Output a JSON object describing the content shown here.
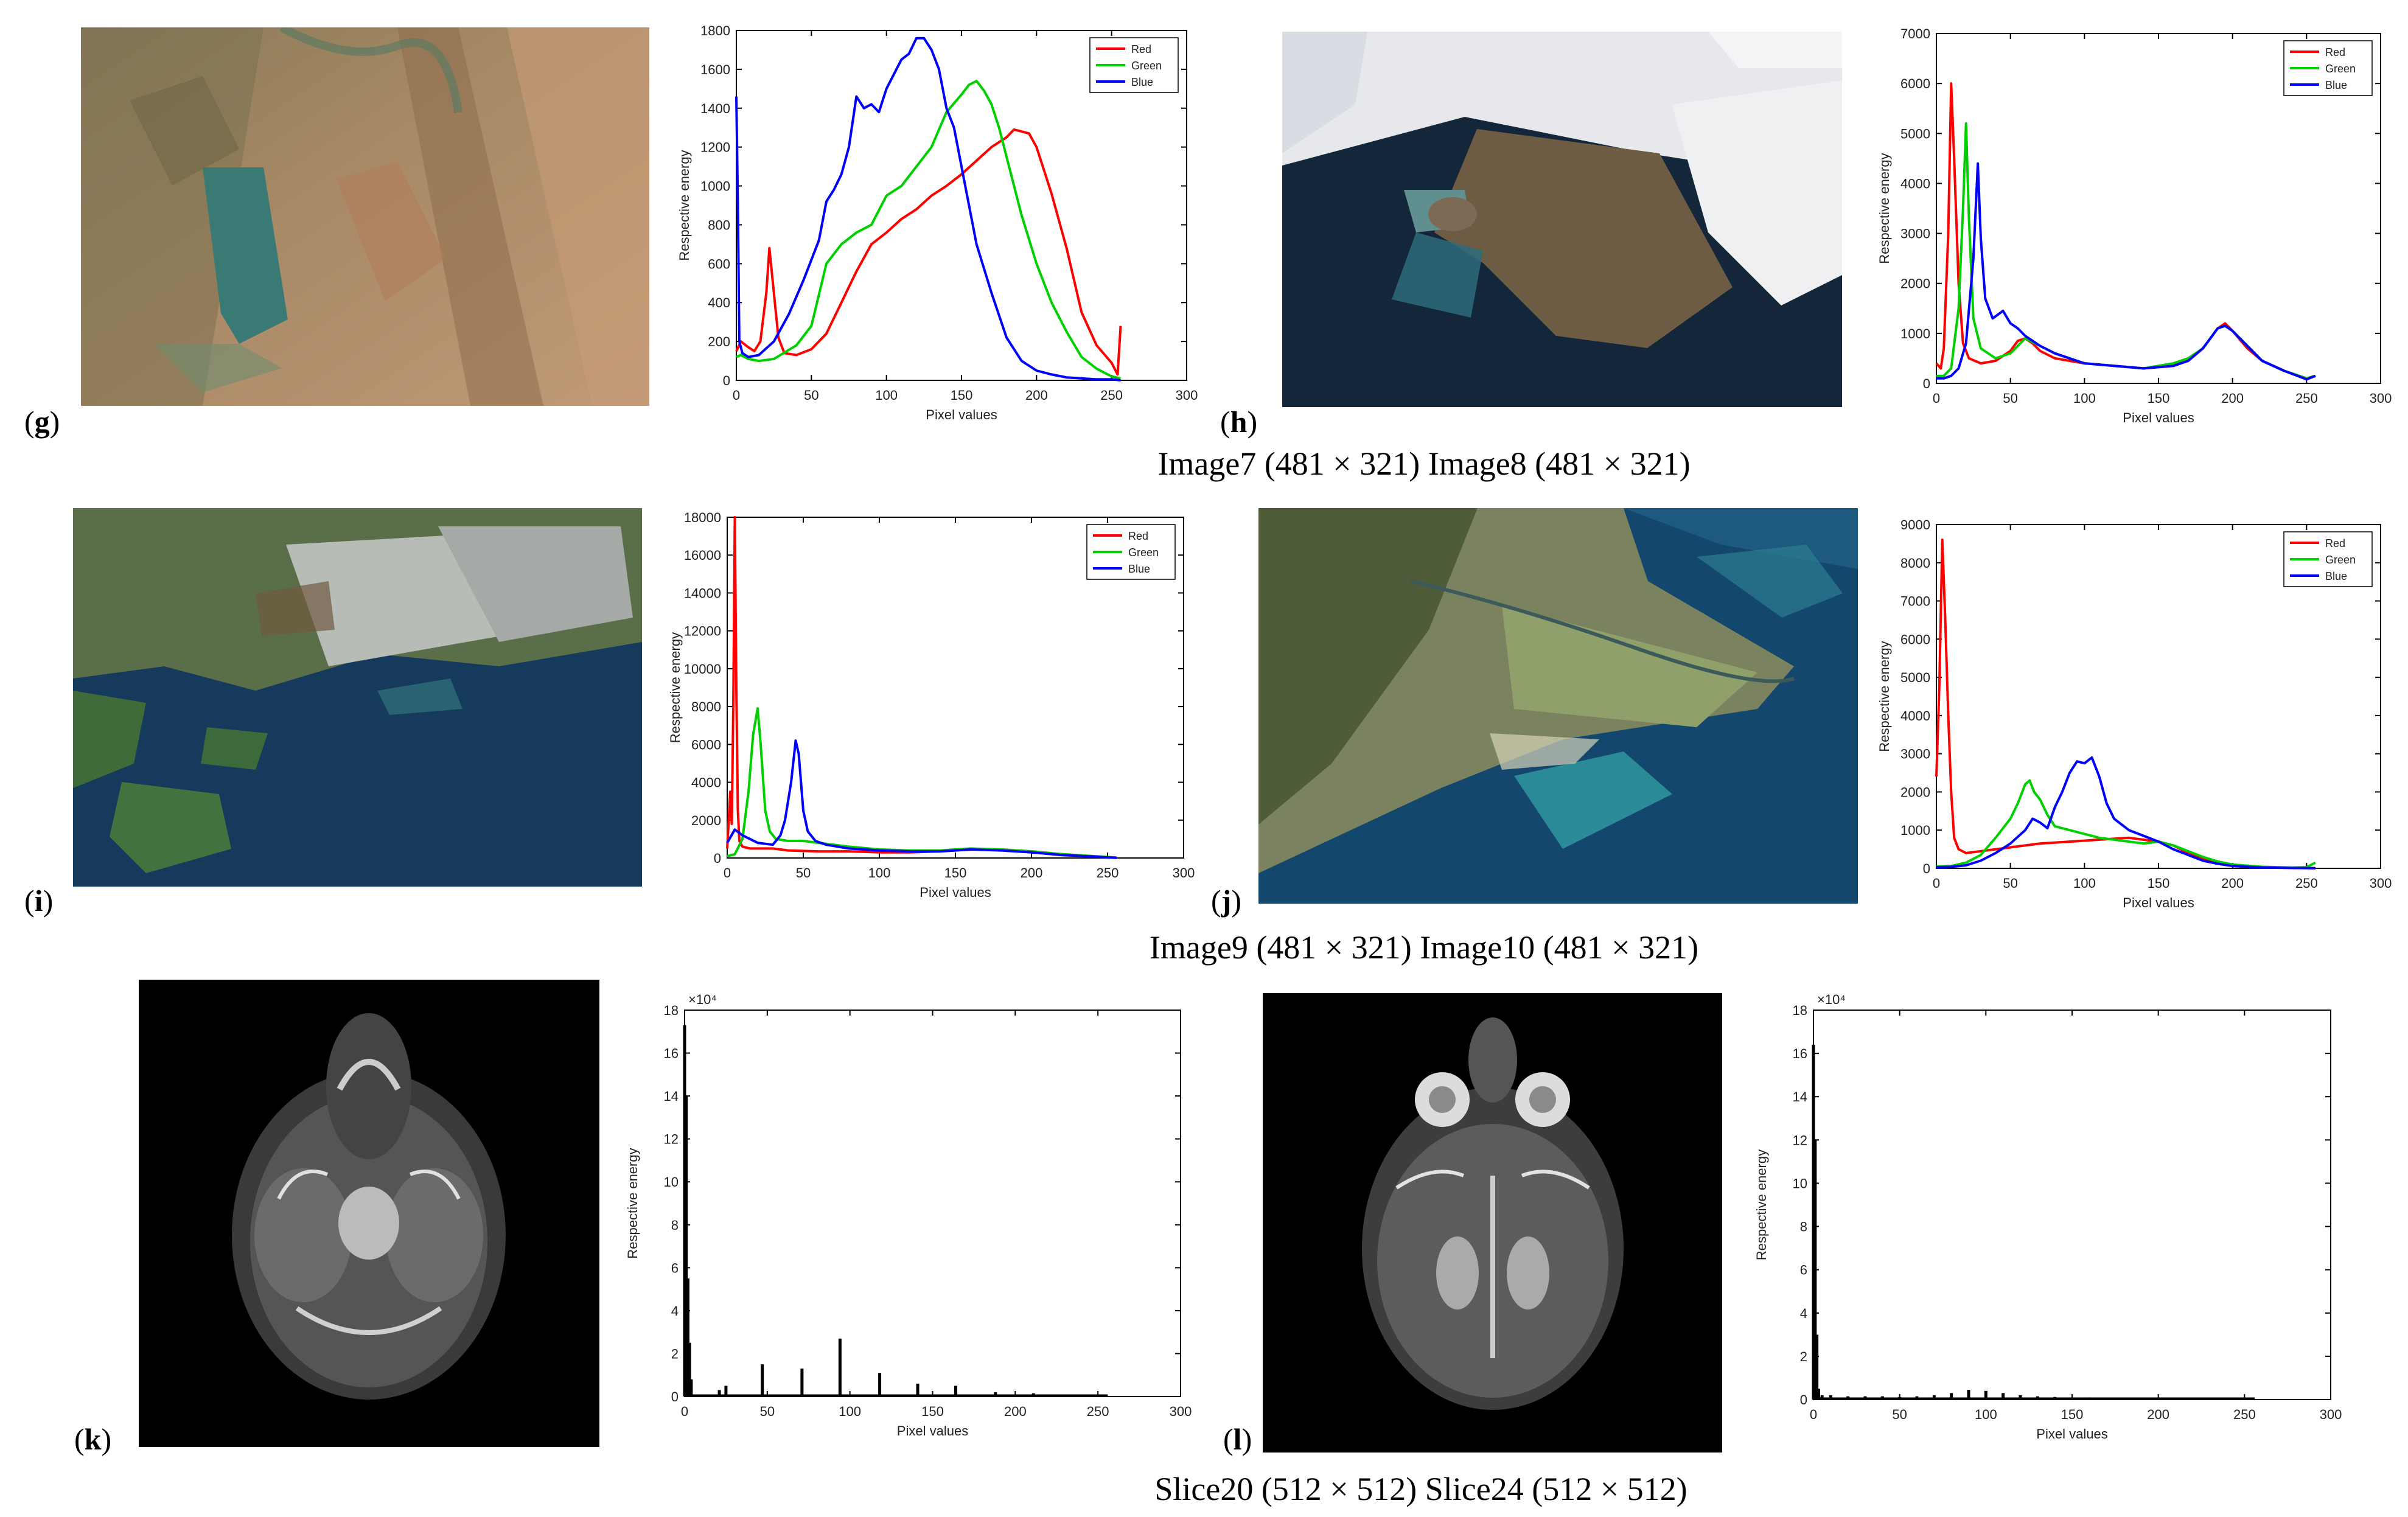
{
  "figure": {
    "captions": {
      "row1": "Image7 (481 × 321) Image8 (481 × 321)",
      "row2": "Image9 (481 × 321) Image10 (481 × 321)",
      "row3": "Slice20 (512 × 512) Slice24 (512 × 512)"
    },
    "panels": [
      {
        "letter": "g",
        "image": "satellite image of a triangular lake amid brown mountains"
      },
      {
        "letter": "h",
        "image": "satellite image of a snowy coastline with cloud cover and dark sea"
      },
      {
        "letter": "i",
        "image": "satellite image of a coastal city with green forested islands and blue sea"
      },
      {
        "letter": "j",
        "image": "satellite image of a river delta with green fields and turquoise lagoon"
      },
      {
        "letter": "k",
        "image": "axial brain MRI slice, grayscale on black background"
      },
      {
        "letter": "l",
        "image": "axial brain MRI slice at eye level, grayscale on black background"
      }
    ]
  },
  "chart_data": [
    {
      "id": "g-hist",
      "type": "line",
      "xlabel": "Pixel values",
      "ylabel": "Respective energy",
      "xlim": [
        0,
        300
      ],
      "ylim": [
        0,
        1800
      ],
      "xticks": [
        0,
        50,
        100,
        150,
        200,
        250,
        300
      ],
      "yticks": [
        0,
        200,
        400,
        600,
        800,
        1000,
        1200,
        1400,
        1600,
        1800
      ],
      "exponent": "",
      "legend": "top-right",
      "grid": false,
      "series": [
        {
          "name": "Red",
          "color": "#ff0000",
          "x": [
            0,
            3,
            8,
            12,
            16,
            20,
            22,
            25,
            28,
            32,
            40,
            50,
            60,
            70,
            80,
            90,
            100,
            110,
            120,
            130,
            140,
            150,
            160,
            170,
            180,
            185,
            190,
            195,
            200,
            210,
            220,
            230,
            240,
            250,
            254,
            256
          ],
          "y": [
            150,
            200,
            170,
            150,
            200,
            450,
            680,
            450,
            220,
            140,
            130,
            160,
            240,
            400,
            560,
            700,
            760,
            830,
            880,
            950,
            1000,
            1060,
            1130,
            1200,
            1250,
            1290,
            1280,
            1270,
            1200,
            960,
            680,
            350,
            180,
            90,
            30,
            280
          ]
        },
        {
          "name": "Green",
          "color": "#00d000",
          "x": [
            0,
            3,
            8,
            15,
            25,
            40,
            50,
            60,
            70,
            80,
            90,
            100,
            110,
            120,
            130,
            140,
            150,
            155,
            160,
            165,
            170,
            175,
            180,
            190,
            200,
            210,
            220,
            230,
            240,
            250,
            256
          ],
          "y": [
            120,
            130,
            110,
            100,
            110,
            180,
            280,
            600,
            700,
            760,
            800,
            950,
            1000,
            1100,
            1200,
            1380,
            1470,
            1520,
            1540,
            1490,
            1420,
            1300,
            1150,
            850,
            600,
            400,
            250,
            120,
            60,
            20,
            10
          ]
        },
        {
          "name": "Blue",
          "color": "#0000ff",
          "x": [
            0,
            1,
            2,
            4,
            8,
            15,
            25,
            35,
            45,
            55,
            60,
            65,
            70,
            75,
            80,
            85,
            90,
            95,
            100,
            110,
            115,
            120,
            125,
            130,
            135,
            140,
            145,
            150,
            160,
            170,
            180,
            190,
            200,
            210,
            220,
            230,
            240,
            250,
            256
          ],
          "y": [
            1460,
            900,
            200,
            140,
            120,
            130,
            200,
            340,
            520,
            720,
            920,
            980,
            1060,
            1200,
            1460,
            1400,
            1420,
            1380,
            1500,
            1650,
            1680,
            1760,
            1760,
            1700,
            1600,
            1400,
            1300,
            1100,
            700,
            450,
            220,
            100,
            50,
            30,
            15,
            10,
            5,
            5,
            0
          ]
        }
      ]
    },
    {
      "id": "h-hist",
      "type": "line",
      "xlabel": "Pixel values",
      "ylabel": "Respective energy",
      "xlim": [
        0,
        300
      ],
      "ylim": [
        0,
        7000
      ],
      "xticks": [
        0,
        50,
        100,
        150,
        200,
        250,
        300
      ],
      "yticks": [
        0,
        1000,
        2000,
        3000,
        4000,
        5000,
        6000,
        7000
      ],
      "exponent": "",
      "legend": "top-right",
      "grid": false,
      "series": [
        {
          "name": "Red",
          "color": "#ff0000",
          "x": [
            0,
            3,
            5,
            8,
            10,
            12,
            15,
            18,
            22,
            30,
            40,
            50,
            55,
            60,
            65,
            70,
            80,
            100,
            120,
            140,
            160,
            170,
            180,
            185,
            190,
            195,
            200,
            210,
            220,
            235,
            250,
            256
          ],
          "y": [
            400,
            300,
            700,
            3000,
            6000,
            4500,
            2000,
            800,
            500,
            400,
            450,
            650,
            850,
            900,
            800,
            650,
            500,
            400,
            350,
            300,
            350,
            450,
            700,
            900,
            1100,
            1200,
            1050,
            700,
            450,
            250,
            100,
            150
          ]
        },
        {
          "name": "Green",
          "color": "#00d000",
          "x": [
            0,
            5,
            10,
            15,
            18,
            20,
            22,
            25,
            30,
            40,
            50,
            60,
            70,
            80,
            100,
            120,
            140,
            160,
            170,
            180,
            185,
            190,
            195,
            200,
            210,
            220,
            235,
            250,
            256
          ],
          "y": [
            150,
            150,
            300,
            1500,
            3500,
            5200,
            3300,
            1300,
            700,
            500,
            600,
            900,
            750,
            600,
            400,
            350,
            300,
            400,
            500,
            700,
            900,
            1100,
            1150,
            1050,
            750,
            450,
            250,
            100,
            150
          ]
        },
        {
          "name": "Blue",
          "color": "#0000ff",
          "x": [
            0,
            5,
            10,
            15,
            20,
            25,
            28,
            30,
            33,
            38,
            45,
            50,
            55,
            60,
            65,
            70,
            80,
            100,
            120,
            140,
            160,
            170,
            180,
            185,
            190,
            195,
            200,
            210,
            220,
            235,
            250,
            256
          ],
          "y": [
            100,
            100,
            150,
            300,
            800,
            2500,
            4400,
            2900,
            1700,
            1300,
            1450,
            1200,
            1100,
            950,
            850,
            750,
            600,
            400,
            350,
            300,
            350,
            450,
            700,
            900,
            1100,
            1150,
            1050,
            750,
            450,
            250,
            80,
            150
          ]
        }
      ]
    },
    {
      "id": "i-hist",
      "type": "line",
      "xlabel": "Pixel values",
      "ylabel": "Respective energy",
      "xlim": [
        0,
        300
      ],
      "ylim": [
        0,
        18000
      ],
      "xticks": [
        0,
        50,
        100,
        150,
        200,
        250,
        300
      ],
      "yticks": [
        0,
        2000,
        4000,
        6000,
        8000,
        10000,
        12000,
        14000,
        16000,
        18000
      ],
      "exponent": "",
      "legend": "top-right",
      "grid": false,
      "series": [
        {
          "name": "Red",
          "color": "#ff0000",
          "x": [
            0,
            2,
            3,
            4,
            5,
            6,
            7,
            8,
            10,
            15,
            20,
            30,
            40,
            60,
            80,
            100,
            120,
            140,
            160,
            180,
            200,
            220,
            240,
            250,
            256
          ],
          "y": [
            500,
            3500,
            1800,
            8000,
            18000,
            9000,
            2500,
            900,
            600,
            500,
            500,
            500,
            400,
            350,
            350,
            300,
            300,
            350,
            450,
            450,
            350,
            200,
            100,
            50,
            20
          ]
        },
        {
          "name": "Green",
          "color": "#00d000",
          "x": [
            0,
            5,
            10,
            14,
            17,
            20,
            22,
            25,
            28,
            32,
            40,
            50,
            60,
            80,
            100,
            120,
            140,
            160,
            180,
            200,
            220,
            240,
            250,
            256
          ],
          "y": [
            100,
            200,
            1000,
            3500,
            6500,
            7900,
            6000,
            2500,
            1400,
            1000,
            900,
            900,
            800,
            600,
            450,
            400,
            400,
            500,
            450,
            350,
            200,
            100,
            50,
            10
          ]
        },
        {
          "name": "Blue",
          "color": "#0000ff",
          "x": [
            0,
            5,
            10,
            20,
            30,
            35,
            38,
            42,
            45,
            47,
            50,
            53,
            58,
            65,
            80,
            100,
            120,
            140,
            160,
            180,
            200,
            220,
            240,
            250,
            256
          ],
          "y": [
            800,
            1500,
            1200,
            800,
            700,
            1200,
            2000,
            4000,
            6200,
            5500,
            2500,
            1400,
            900,
            700,
            500,
            400,
            350,
            350,
            450,
            400,
            300,
            150,
            80,
            30,
            10
          ]
        }
      ]
    },
    {
      "id": "j-hist",
      "type": "line",
      "xlabel": "Pixel values",
      "ylabel": "Respective energy",
      "xlim": [
        0,
        300
      ],
      "ylim": [
        0,
        9000
      ],
      "xticks": [
        0,
        50,
        100,
        150,
        200,
        250,
        300
      ],
      "yticks": [
        0,
        1000,
        2000,
        3000,
        4000,
        5000,
        6000,
        7000,
        8000,
        9000
      ],
      "exponent": "",
      "legend": "top-right",
      "grid": false,
      "series": [
        {
          "name": "Red",
          "color": "#ff0000",
          "x": [
            0,
            2,
            4,
            6,
            8,
            10,
            12,
            15,
            20,
            30,
            50,
            70,
            90,
            110,
            130,
            150,
            160,
            170,
            180,
            190,
            200,
            220,
            240,
            256
          ],
          "y": [
            2400,
            4800,
            8600,
            6500,
            4000,
            2000,
            800,
            500,
            400,
            450,
            550,
            650,
            700,
            750,
            800,
            700,
            600,
            400,
            250,
            150,
            80,
            30,
            10,
            5
          ]
        },
        {
          "name": "Green",
          "color": "#00d000",
          "x": [
            0,
            10,
            20,
            30,
            40,
            50,
            55,
            60,
            63,
            66,
            70,
            75,
            80,
            90,
            100,
            110,
            120,
            130,
            140,
            150,
            160,
            170,
            180,
            190,
            200,
            220,
            240,
            250,
            256
          ],
          "y": [
            50,
            60,
            150,
            350,
            800,
            1300,
            1700,
            2200,
            2300,
            2000,
            1800,
            1400,
            1100,
            1000,
            900,
            800,
            750,
            700,
            650,
            700,
            600,
            450,
            300,
            180,
            100,
            40,
            20,
            30,
            150
          ]
        },
        {
          "name": "Blue",
          "color": "#0000ff",
          "x": [
            0,
            10,
            20,
            30,
            40,
            50,
            60,
            65,
            70,
            75,
            80,
            85,
            90,
            95,
            100,
            105,
            110,
            115,
            120,
            130,
            140,
            150,
            160,
            170,
            180,
            190,
            200,
            220,
            240,
            256
          ],
          "y": [
            30,
            40,
            80,
            200,
            400,
            650,
            1000,
            1300,
            1200,
            1050,
            1600,
            2000,
            2500,
            2800,
            2750,
            2900,
            2400,
            1700,
            1300,
            1000,
            850,
            700,
            500,
            350,
            200,
            120,
            60,
            20,
            10,
            5
          ]
        }
      ]
    },
    {
      "id": "k-hist",
      "type": "bar",
      "xlabel": "Pixel values",
      "ylabel": "Respective energy",
      "xlim": [
        0,
        300
      ],
      "ylim": [
        0,
        18
      ],
      "xticks": [
        0,
        50,
        100,
        150,
        200,
        250,
        300
      ],
      "yticks": [
        0,
        2,
        4,
        6,
        8,
        10,
        12,
        14,
        16,
        18
      ],
      "exponent": "×10⁴",
      "legend": "",
      "grid": false,
      "series": [
        {
          "name": "",
          "color": "#000000",
          "x": [
            0,
            1,
            2,
            3,
            4,
            21,
            25,
            47,
            71,
            94,
            118,
            141,
            164,
            188,
            211,
            234
          ],
          "y": [
            17.3,
            14.0,
            5.5,
            2.5,
            0.8,
            0.3,
            0.5,
            1.5,
            1.3,
            2.7,
            1.1,
            0.6,
            0.5,
            0.2,
            0.15,
            0.1
          ]
        }
      ]
    },
    {
      "id": "l-hist",
      "type": "bar",
      "xlabel": "Pixel values",
      "ylabel": "Respective energy",
      "xlim": [
        0,
        300
      ],
      "ylim": [
        0,
        18
      ],
      "xticks": [
        0,
        50,
        100,
        150,
        200,
        250,
        300
      ],
      "yticks": [
        0,
        2,
        4,
        6,
        8,
        10,
        12,
        14,
        16,
        18
      ],
      "exponent": "×10⁴",
      "legend": "",
      "grid": false,
      "series": [
        {
          "name": "",
          "color": "#000000",
          "x": [
            0,
            1,
            2,
            3,
            5,
            10,
            20,
            30,
            40,
            50,
            60,
            70,
            80,
            90,
            100,
            110,
            120,
            130,
            140,
            150,
            160,
            170,
            180,
            190,
            200,
            210,
            220,
            230,
            240,
            250,
            255
          ],
          "y": [
            16.4,
            12.0,
            3.0,
            0.5,
            0.2,
            0.2,
            0.15,
            0.15,
            0.15,
            0.12,
            0.15,
            0.2,
            0.3,
            0.45,
            0.4,
            0.3,
            0.2,
            0.15,
            0.12,
            0.1,
            0.1,
            0.08,
            0.07,
            0.06,
            0.05,
            0.05,
            0.04,
            0.04,
            0.03,
            0.03,
            0.02
          ]
        }
      ]
    }
  ]
}
